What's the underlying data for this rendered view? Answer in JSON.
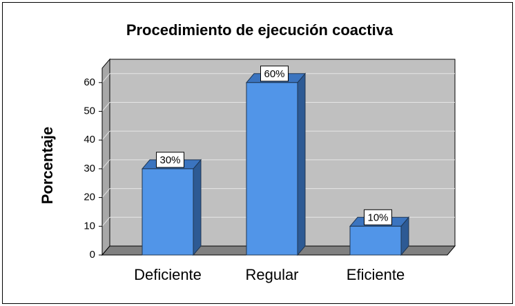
{
  "chart_data": {
    "type": "bar",
    "title": "Procedimiento de ejecución coactiva",
    "y_label": "Porcentaje",
    "categories": [
      "Deficiente",
      "Regular",
      "Eficiente"
    ],
    "values": [
      30,
      60,
      10
    ],
    "value_labels": [
      "30%",
      "60%",
      "10%"
    ],
    "color": "#5195e8",
    "ylim": [
      0,
      65
    ],
    "yticks": [
      0,
      10,
      20,
      30,
      40,
      50,
      60
    ],
    "grid": true
  }
}
